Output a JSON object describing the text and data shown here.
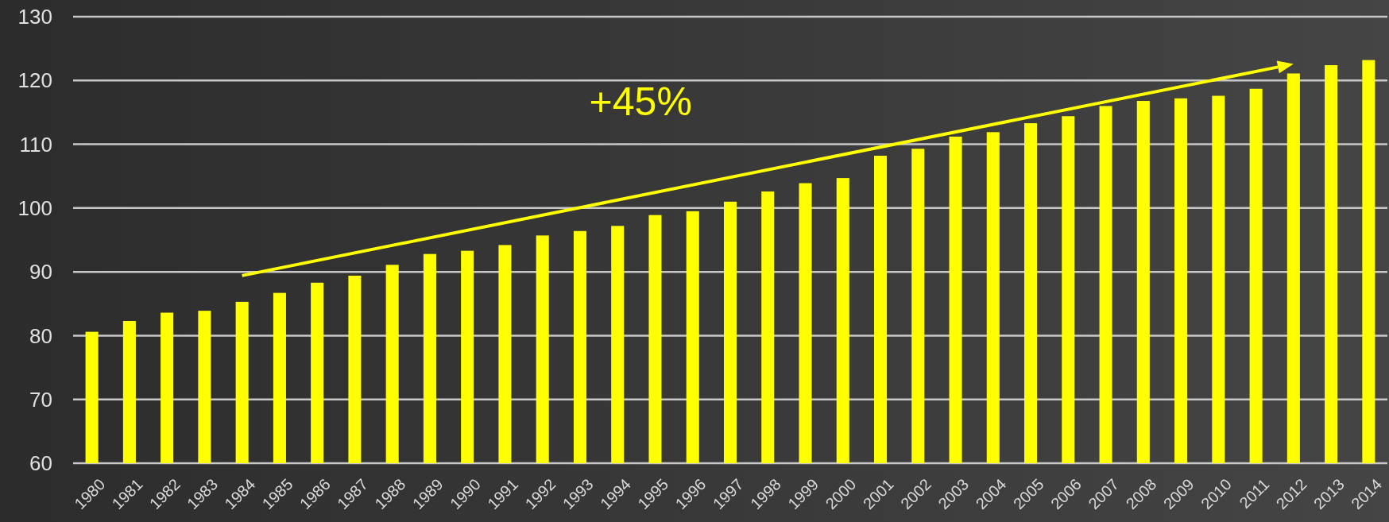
{
  "chart_data": {
    "type": "bar",
    "categories": [
      "1980",
      "1981",
      "1982",
      "1983",
      "1984",
      "1985",
      "1986",
      "1987",
      "1988",
      "1989",
      "1990",
      "1991",
      "1992",
      "1993",
      "1994",
      "1995",
      "1996",
      "1997",
      "1998",
      "1999",
      "2000",
      "2001",
      "2002",
      "2003",
      "2004",
      "2005",
      "2006",
      "2007",
      "2008",
      "2009",
      "2010",
      "2011",
      "2012",
      "2013",
      "2014"
    ],
    "values": [
      80.6,
      82.3,
      83.6,
      83.9,
      85.3,
      86.7,
      88.3,
      89.4,
      91.1,
      92.8,
      93.3,
      94.2,
      95.7,
      96.4,
      97.2,
      98.9,
      99.5,
      101.0,
      102.6,
      103.9,
      104.7,
      108.2,
      109.3,
      111.2,
      111.9,
      113.3,
      114.4,
      116.0,
      116.8,
      117.2,
      117.6,
      118.7,
      121.1,
      122.4,
      123.2
    ],
    "color": "#ffff00",
    "ylim": [
      60,
      130
    ],
    "yticks": [
      60,
      70,
      80,
      90,
      100,
      110,
      120,
      130
    ],
    "grid": "y",
    "annotations": [
      "+45%"
    ]
  }
}
